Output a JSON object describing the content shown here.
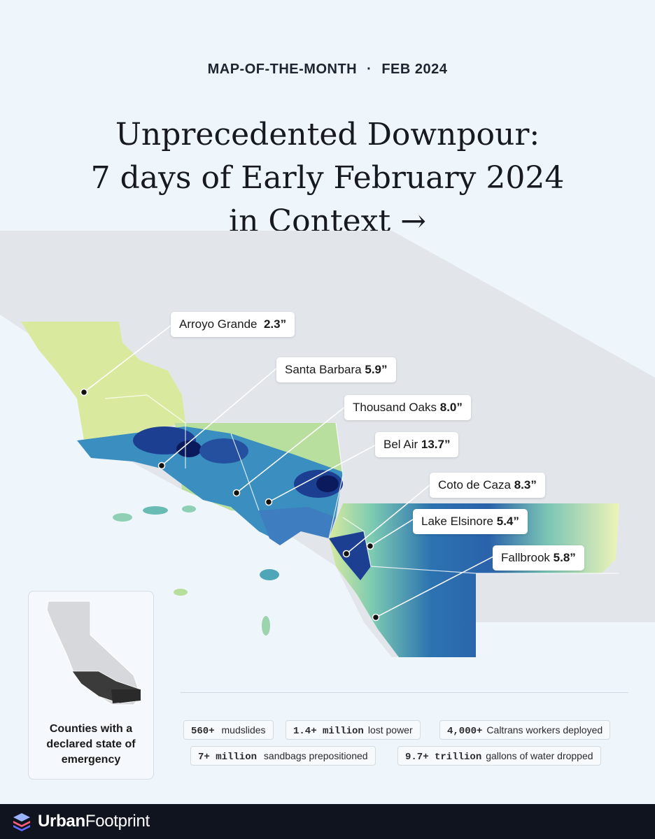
{
  "header": {
    "kicker_left": "MAP-OF-THE-MONTH",
    "kicker_sep": "·",
    "kicker_right": "FEB 2024",
    "title_line1": "Unprecedented Downpour:",
    "title_line2": "7 days of Early February 2024",
    "title_line3": "in Context →"
  },
  "map": {
    "labels": [
      {
        "place": "Arroyo Grande",
        "value": "2.3”"
      },
      {
        "place": "Santa Barbara",
        "value": "5.9”"
      },
      {
        "place": "Thousand Oaks",
        "value": "8.0”"
      },
      {
        "place": "Bel Air",
        "value": "13.7”"
      },
      {
        "place": "Coto de Caza",
        "value": "8.3”"
      },
      {
        "place": "Lake Elsinore",
        "value": "5.4”"
      },
      {
        "place": "Fallbrook",
        "value": "5.8”"
      }
    ],
    "colors": {
      "low": "#e8f1b8",
      "mid": "#5fb8b4",
      "high": "#1d3f91",
      "peak": "#0b1a5c",
      "land": "#e3e7ec"
    }
  },
  "inset": {
    "caption_line1": "Counties with a",
    "caption_line2": "declared state of",
    "caption_line3": "emergency"
  },
  "stats": [
    {
      "num": "560+",
      "text": "mudslides"
    },
    {
      "num": "1.4+ million",
      "text": "lost power"
    },
    {
      "num": "4,000+",
      "text": "Caltrans workers deployed"
    },
    {
      "num": "7+ million",
      "text": "sandbags prepositioned"
    },
    {
      "num": "9.7+ trillion",
      "text": "gallons of water dropped"
    }
  ],
  "footer": {
    "brand_bold": "Urban",
    "brand_light": "Footprint",
    "logo_icon": "stacked-layers-icon"
  }
}
